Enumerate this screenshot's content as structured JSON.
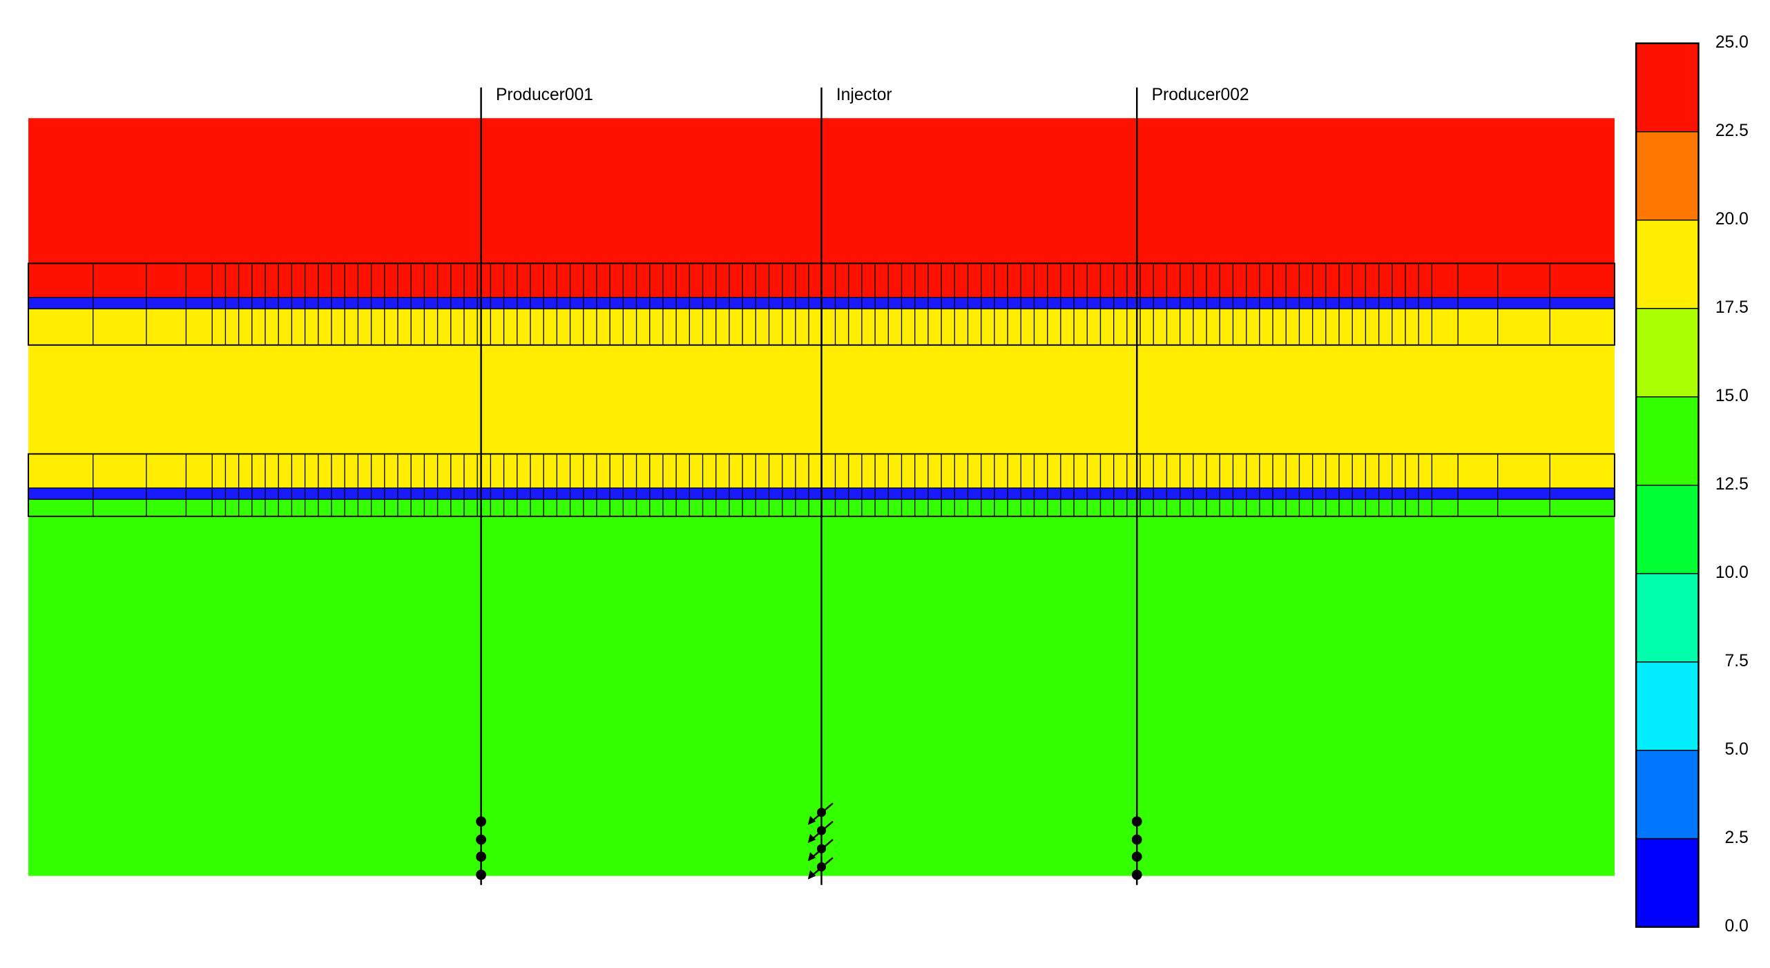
{
  "colorbar": {
    "ticks": [
      {
        "value": 0,
        "label": "0.0"
      },
      {
        "value": 2.5,
        "label": "2.5"
      },
      {
        "value": 5,
        "label": "5.0"
      },
      {
        "value": 7.5,
        "label": "7.5"
      },
      {
        "value": 10,
        "label": "10.0"
      },
      {
        "value": 12.5,
        "label": "12.5"
      },
      {
        "value": 15,
        "label": "15.0"
      },
      {
        "value": 17.5,
        "label": "17.5"
      },
      {
        "value": 20,
        "label": "20.0"
      },
      {
        "value": 22.5,
        "label": "22.5"
      },
      {
        "value": 25,
        "label": "25.0"
      }
    ],
    "colors": [
      "#0000ff",
      "#0077ff",
      "#00eeff",
      "#00ffaa",
      "#00ff33",
      "#33ff00",
      "#aaff00",
      "#ffee00",
      "#ff7700",
      "#ff1100"
    ]
  },
  "wells": [
    {
      "name": "Producer001",
      "kind": "producer"
    },
    {
      "name": "Injector",
      "kind": "injector"
    },
    {
      "name": "Producer002",
      "kind": "producer"
    }
  ]
}
